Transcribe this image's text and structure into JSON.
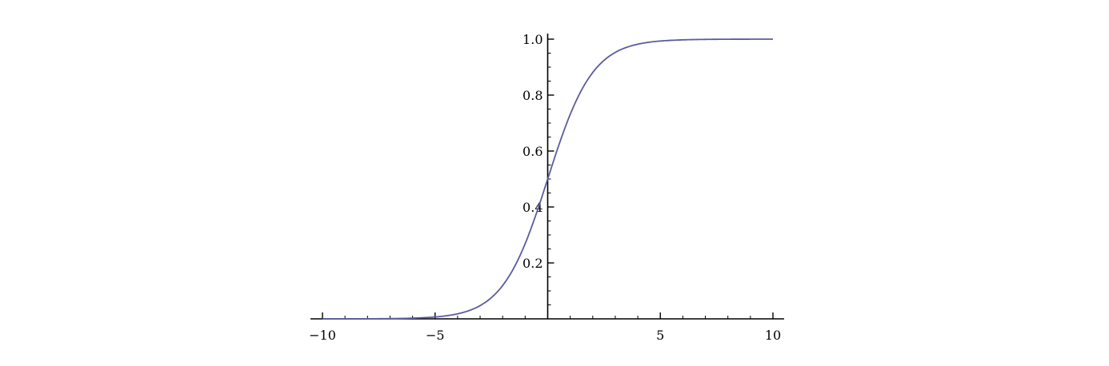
{
  "chart_data": {
    "type": "line",
    "title": "",
    "xlabel": "",
    "ylabel": "",
    "xlim": [
      -10,
      10
    ],
    "ylim": [
      0,
      1
    ],
    "grid": false,
    "x_ticks": [
      {
        "value": -10,
        "label": "−10"
      },
      {
        "value": -5,
        "label": "−5"
      },
      {
        "value": 5,
        "label": "5"
      },
      {
        "value": 10,
        "label": "10"
      }
    ],
    "y_ticks": [
      {
        "value": 0.2,
        "label": "0.2"
      },
      {
        "value": 0.4,
        "label": "0.4"
      },
      {
        "value": 0.6,
        "label": "0.6"
      },
      {
        "value": 0.8,
        "label": "0.8"
      },
      {
        "value": 1.0,
        "label": "1.0"
      }
    ],
    "series": [
      {
        "color": "#5b5b9e",
        "points": [
          [
            -10,
            0.0
          ],
          [
            -9,
            0.0001
          ],
          [
            -8,
            0.0003
          ],
          [
            -7,
            0.0009
          ],
          [
            -6,
            0.0025
          ],
          [
            -5,
            0.0067
          ],
          [
            -4.5,
            0.011
          ],
          [
            -4,
            0.018
          ],
          [
            -3.5,
            0.0293
          ],
          [
            -3,
            0.0474
          ],
          [
            -2.5,
            0.0759
          ],
          [
            -2,
            0.1192
          ],
          [
            -1.5,
            0.1824
          ],
          [
            -1,
            0.2689
          ],
          [
            -0.5,
            0.3775
          ],
          [
            0,
            0.5
          ],
          [
            0.5,
            0.6225
          ],
          [
            1,
            0.7311
          ],
          [
            1.5,
            0.8176
          ],
          [
            2,
            0.8808
          ],
          [
            2.5,
            0.9241
          ],
          [
            3,
            0.9526
          ],
          [
            3.5,
            0.9707
          ],
          [
            4,
            0.982
          ],
          [
            4.5,
            0.989
          ],
          [
            5,
            0.9933
          ],
          [
            6,
            0.9975
          ],
          [
            7,
            0.9991
          ],
          [
            8,
            0.9997
          ],
          [
            9,
            0.9999
          ],
          [
            10,
            1.0
          ]
        ]
      }
    ]
  }
}
